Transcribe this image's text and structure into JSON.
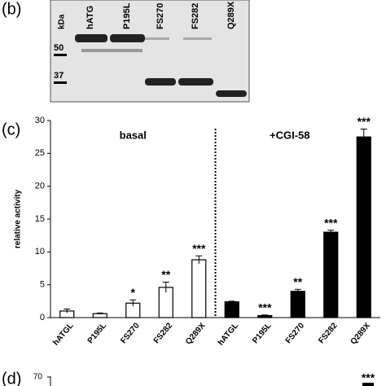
{
  "blot": {
    "label": "(b)",
    "units": "kDa",
    "lanes": [
      "hATG",
      "P195L",
      "FS270",
      "FS282",
      "Q289X"
    ],
    "markers": [
      50,
      37
    ]
  },
  "chart_data": [
    {
      "type": "bar",
      "label": "(c)",
      "y_label": "relative activity",
      "categories": [
        "hATGL",
        "P195L",
        "FS270",
        "FS282",
        "Q289X",
        "hATGL",
        "P195L",
        "FS270",
        "FS282",
        "Q289X"
      ],
      "series": [
        {
          "name": "basal",
          "color": "#ffffff",
          "values": [
            1.0,
            0.6,
            2.2,
            4.6,
            8.8,
            null,
            null,
            null,
            null,
            null
          ],
          "errors": [
            0.3,
            0.1,
            0.5,
            0.8,
            0.6,
            null,
            null,
            null,
            null,
            null
          ]
        },
        {
          "name": "+CGI-58",
          "color": "#000000",
          "values": [
            null,
            null,
            null,
            null,
            null,
            2.4,
            0.3,
            4.0,
            13.0,
            27.5
          ],
          "errors": [
            null,
            null,
            null,
            null,
            null,
            0.1,
            0.1,
            0.3,
            0.3,
            1.2
          ]
        }
      ],
      "annotations": [
        null,
        null,
        "*",
        "**",
        "***",
        null,
        "***",
        "**",
        "***",
        "***"
      ],
      "ylim": [
        0,
        30
      ],
      "yticks": [
        0,
        5,
        10,
        15,
        20,
        25,
        30
      ]
    },
    {
      "type": "partial",
      "label": "(d)",
      "yticks": [
        70
      ],
      "annotations": [
        "***"
      ]
    }
  ]
}
